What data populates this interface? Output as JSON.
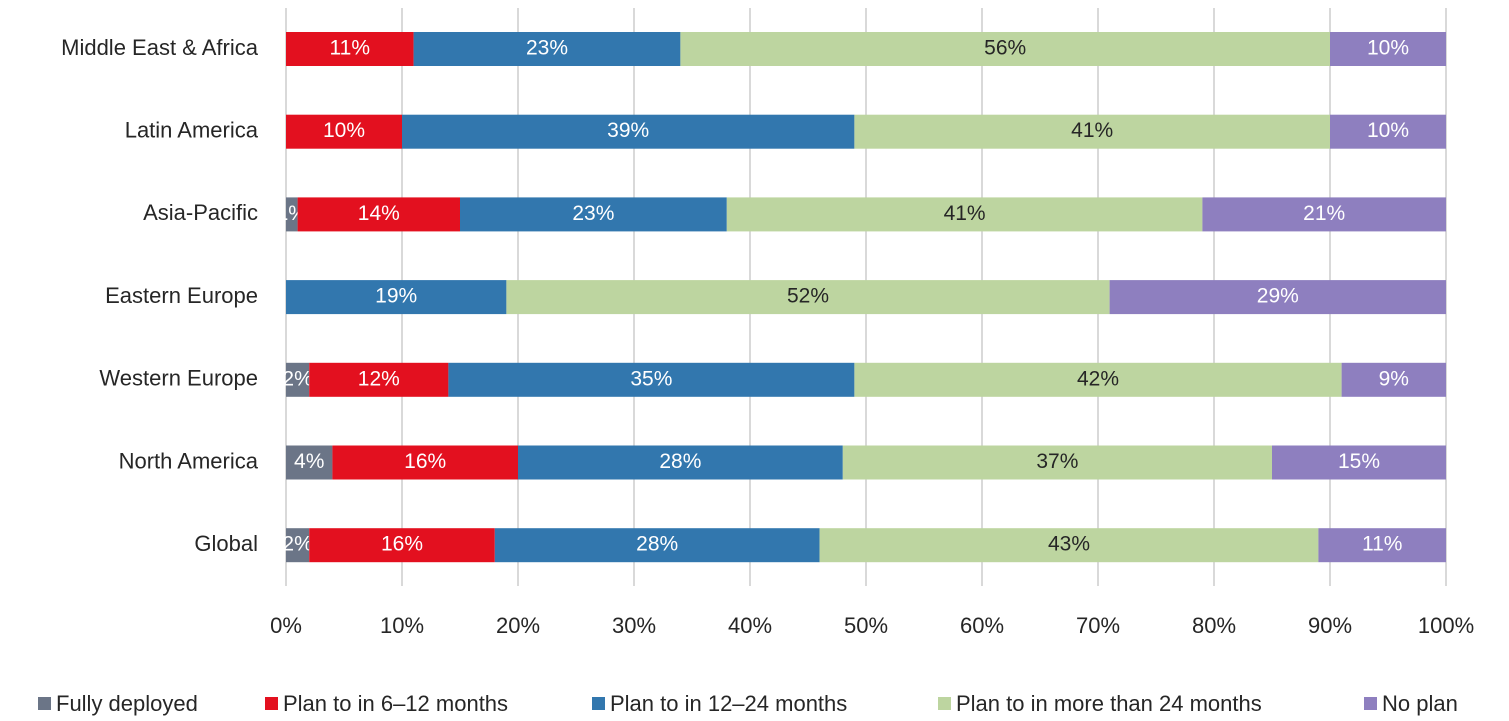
{
  "chart_data": {
    "type": "stacked_barh",
    "categories": [
      "Middle East & Africa",
      "Latin America",
      "Asia-Pacific",
      "Eastern Europe",
      "Western Europe",
      "North America",
      "Global"
    ],
    "series": [
      {
        "name": "Fully deployed",
        "color": "#6b7587",
        "values": [
          null,
          null,
          1,
          null,
          2,
          4,
          2
        ],
        "value_labels": [
          null,
          null,
          "1%",
          null,
          "2%",
          "4%",
          "2%"
        ]
      },
      {
        "name": "Plan to in 6–12 months",
        "color": "#e3101f",
        "values": [
          11,
          10,
          14,
          null,
          12,
          16,
          16
        ],
        "value_labels": [
          "11%",
          "10%",
          "14%",
          null,
          "12%",
          "16%",
          "16%"
        ]
      },
      {
        "name": "Plan to in 12–24 months",
        "color": "#3277ae",
        "values": [
          23,
          39,
          23,
          19,
          35,
          28,
          28
        ],
        "value_labels": [
          "23%",
          "39%",
          "23%",
          "19%",
          "35%",
          "28%",
          "28%"
        ]
      },
      {
        "name": "Plan to in more than 24 months",
        "color": "#bdd5a0",
        "values": [
          56,
          41,
          41,
          52,
          42,
          37,
          43
        ],
        "value_labels": [
          "56%",
          "41%",
          "41%",
          "52%",
          "42%",
          "37%",
          "43%"
        ]
      },
      {
        "name": "No plan",
        "color": "#8e7fbf",
        "values": [
          10,
          10,
          21,
          29,
          9,
          15,
          11
        ],
        "value_labels": [
          "10%",
          "10%",
          "21%",
          "29%",
          "9%",
          "15%",
          "11%"
        ]
      }
    ],
    "xlim": [
      0,
      100
    ],
    "xticks": [
      {
        "value": 0,
        "label": "0%"
      },
      {
        "value": 10,
        "label": "10%"
      },
      {
        "value": 20,
        "label": "20%"
      },
      {
        "value": 30,
        "label": "30%"
      },
      {
        "value": 40,
        "label": "40%"
      },
      {
        "value": 50,
        "label": "50%"
      },
      {
        "value": 60,
        "label": "60%"
      },
      {
        "value": 70,
        "label": "70%"
      },
      {
        "value": 80,
        "label": "80%"
      },
      {
        "value": 90,
        "label": "90%"
      },
      {
        "value": 100,
        "label": "100%"
      }
    ],
    "grid": true,
    "legend": "bottom"
  }
}
